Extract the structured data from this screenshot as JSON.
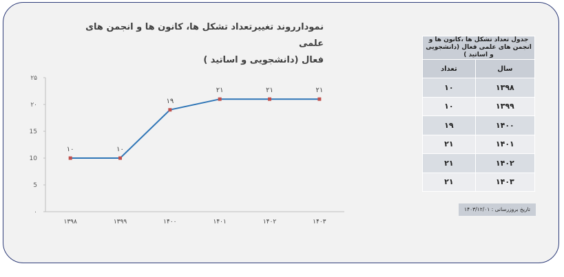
{
  "chart_data": {
    "type": "line",
    "title": "نمودارروند تغییرتعداد تشکل ها، کانون ها و انجمن های علمی فعال (دانشجویی و اساتید )",
    "title_line1": "نمودارروند تغییرتعداد تشکل ها، کانون ها و انجمن های علمی",
    "title_line2": "فعال (دانشجویی و اساتید )",
    "categories": [
      "۱۳۹۸",
      "۱۳۹۹",
      "۱۴۰۰",
      "۱۴۰۱",
      "۱۴۰۲",
      "۱۴۰۳"
    ],
    "series": [
      {
        "values": [
          10,
          10,
          19,
          21,
          21,
          21
        ],
        "labels": [
          "۱۰",
          "۱۰",
          "۱۹",
          "۲۱",
          "۲۱",
          "۲۱"
        ],
        "color": "#2e75b6",
        "marker_color": "#c0504d"
      }
    ],
    "ylim": [
      0,
      25
    ],
    "yticks": [
      0,
      5,
      10,
      15,
      20,
      25
    ],
    "ytick_labels": [
      "۰",
      "5",
      "10",
      "15",
      "۲۰",
      "۲۵"
    ],
    "grid": false,
    "legend": "none"
  },
  "table": {
    "caption": "جدول تعداد تشکل ها ،کانون ها و انجمن های علمی فعال (دانشجویی و اساتید )",
    "headers": {
      "year": "سال",
      "count": "تعداد"
    },
    "rows": [
      {
        "year": "۱۳۹۸",
        "count": "۱۰"
      },
      {
        "year": "۱۳۹۹",
        "count": "۱۰"
      },
      {
        "year": "۱۴۰۰",
        "count": "۱۹"
      },
      {
        "year": "۱۴۰۱",
        "count": "۲۱"
      },
      {
        "year": "۱۴۰۲",
        "count": "۲۱"
      },
      {
        "year": "۱۴۰۳",
        "count": "۲۱"
      }
    ]
  },
  "update_note": "تاریخ بروزرسانی : ۱۴۰۳/۱۲/۰۱",
  "colors": {
    "frame_border": "#2d3b78",
    "background": "#f2f2f2",
    "table_header": "#c9ced6"
  }
}
